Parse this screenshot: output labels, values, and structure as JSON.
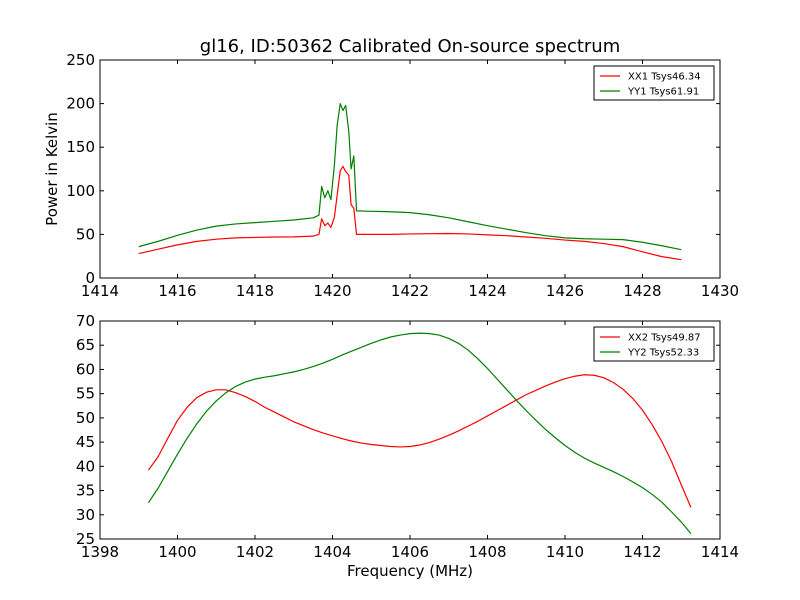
{
  "figure": {
    "title": "gl16, ID:50362 Calibrated On-source spectrum"
  },
  "chart_data": [
    {
      "type": "line",
      "title": "gl16, ID:50362 Calibrated On-source spectrum",
      "xlabel": "",
      "ylabel": "Power in Kelvin",
      "xlim": [
        1414,
        1430
      ],
      "ylim": [
        0,
        250
      ],
      "xticks": [
        1414,
        1416,
        1418,
        1420,
        1422,
        1424,
        1426,
        1428,
        1430
      ],
      "yticks": [
        0,
        50,
        100,
        150,
        200,
        250
      ],
      "grid": false,
      "legend": "top-right",
      "series": [
        {
          "name": "XX1 Tsys46.34",
          "color": "#ff0000",
          "points": [
            [
              1415.0,
              28
            ],
            [
              1415.5,
              33
            ],
            [
              1416.0,
              38
            ],
            [
              1416.5,
              42
            ],
            [
              1417.0,
              44.5
            ],
            [
              1417.5,
              46
            ],
            [
              1418.0,
              46.5
            ],
            [
              1418.5,
              47
            ],
            [
              1419.0,
              47.2
            ],
            [
              1419.5,
              48
            ],
            [
              1419.65,
              50
            ],
            [
              1419.72,
              68
            ],
            [
              1419.8,
              60
            ],
            [
              1419.88,
              63
            ],
            [
              1419.96,
              58
            ],
            [
              1420.05,
              70
            ],
            [
              1420.12,
              95
            ],
            [
              1420.2,
              123
            ],
            [
              1420.27,
              128
            ],
            [
              1420.34,
              122
            ],
            [
              1420.42,
              118
            ],
            [
              1420.48,
              84
            ],
            [
              1420.55,
              80
            ],
            [
              1420.62,
              50
            ],
            [
              1421.0,
              50
            ],
            [
              1421.5,
              50
            ],
            [
              1422.0,
              50.5
            ],
            [
              1422.5,
              50.8
            ],
            [
              1423.0,
              51
            ],
            [
              1423.5,
              50.5
            ],
            [
              1424.0,
              49.5
            ],
            [
              1424.5,
              48.5
            ],
            [
              1425.0,
              47
            ],
            [
              1425.5,
              45.5
            ],
            [
              1426.0,
              43.5
            ],
            [
              1426.5,
              42
            ],
            [
              1427.0,
              39.5
            ],
            [
              1427.5,
              36
            ],
            [
              1428.0,
              30
            ],
            [
              1428.5,
              24.5
            ],
            [
              1429.0,
              21
            ]
          ]
        },
        {
          "name": "YY1 Tsys61.91",
          "color": "#008000",
          "points": [
            [
              1415.0,
              36
            ],
            [
              1415.5,
              42
            ],
            [
              1416.0,
              49
            ],
            [
              1416.5,
              55
            ],
            [
              1417.0,
              59.5
            ],
            [
              1417.5,
              62
            ],
            [
              1418.0,
              63.5
            ],
            [
              1418.5,
              65
            ],
            [
              1419.0,
              66.5
            ],
            [
              1419.5,
              69
            ],
            [
              1419.65,
              72
            ],
            [
              1419.72,
              105
            ],
            [
              1419.8,
              92
            ],
            [
              1419.88,
              100
            ],
            [
              1419.96,
              90
            ],
            [
              1420.05,
              130
            ],
            [
              1420.12,
              175
            ],
            [
              1420.2,
              200
            ],
            [
              1420.27,
              192
            ],
            [
              1420.34,
              198
            ],
            [
              1420.42,
              168
            ],
            [
              1420.48,
              125
            ],
            [
              1420.55,
              140
            ],
            [
              1420.62,
              77
            ],
            [
              1421.0,
              76.5
            ],
            [
              1421.5,
              76
            ],
            [
              1422.0,
              75
            ],
            [
              1422.5,
              72.5
            ],
            [
              1423.0,
              69
            ],
            [
              1423.5,
              64.5
            ],
            [
              1424.0,
              60
            ],
            [
              1424.5,
              56
            ],
            [
              1425.0,
              52
            ],
            [
              1425.5,
              48.5
            ],
            [
              1426.0,
              46
            ],
            [
              1426.5,
              45
            ],
            [
              1427.0,
              44.5
            ],
            [
              1427.5,
              44
            ],
            [
              1428.0,
              41
            ],
            [
              1428.5,
              37
            ],
            [
              1429.0,
              32.5
            ]
          ]
        }
      ]
    },
    {
      "type": "line",
      "title": "",
      "xlabel": "Frequency (MHz)",
      "ylabel": "",
      "xlim": [
        1398,
        1414
      ],
      "ylim": [
        25,
        70
      ],
      "xticks": [
        1398,
        1400,
        1402,
        1404,
        1406,
        1408,
        1410,
        1412,
        1414
      ],
      "yticks": [
        25,
        30,
        35,
        40,
        45,
        50,
        55,
        60,
        65,
        70
      ],
      "grid": false,
      "legend": "top-right",
      "series": [
        {
          "name": "XX2 Tsys49.87",
          "color": "#ff0000",
          "points": [
            [
              1399.25,
              39.2
            ],
            [
              1399.5,
              42
            ],
            [
              1399.75,
              45.8
            ],
            [
              1400.0,
              49.5
            ],
            [
              1400.25,
              52.2
            ],
            [
              1400.5,
              54.2
            ],
            [
              1400.75,
              55.3
            ],
            [
              1401.0,
              55.8
            ],
            [
              1401.25,
              55.8
            ],
            [
              1401.5,
              55.2
            ],
            [
              1401.75,
              54.4
            ],
            [
              1402.0,
              53.4
            ],
            [
              1402.25,
              52.2
            ],
            [
              1402.5,
              51.2
            ],
            [
              1402.75,
              50.2
            ],
            [
              1403.0,
              49.2
            ],
            [
              1403.25,
              48.4
            ],
            [
              1403.5,
              47.6
            ],
            [
              1403.75,
              46.9
            ],
            [
              1404.0,
              46.3
            ],
            [
              1404.25,
              45.7
            ],
            [
              1404.5,
              45.2
            ],
            [
              1404.75,
              44.8
            ],
            [
              1405.0,
              44.5
            ],
            [
              1405.25,
              44.3
            ],
            [
              1405.5,
              44.1
            ],
            [
              1405.75,
              44.0
            ],
            [
              1406.0,
              44.1
            ],
            [
              1406.25,
              44.4
            ],
            [
              1406.5,
              44.9
            ],
            [
              1406.75,
              45.6
            ],
            [
              1407.0,
              46.4
            ],
            [
              1407.25,
              47.3
            ],
            [
              1407.5,
              48.3
            ],
            [
              1407.75,
              49.3
            ],
            [
              1408.0,
              50.4
            ],
            [
              1408.25,
              51.5
            ],
            [
              1408.5,
              52.6
            ],
            [
              1408.75,
              53.7
            ],
            [
              1409.0,
              54.8
            ],
            [
              1409.25,
              55.7
            ],
            [
              1409.5,
              56.6
            ],
            [
              1409.75,
              57.4
            ],
            [
              1410.0,
              58.1
            ],
            [
              1410.25,
              58.6
            ],
            [
              1410.5,
              58.9
            ],
            [
              1410.75,
              58.8
            ],
            [
              1411.0,
              58.3
            ],
            [
              1411.25,
              57.3
            ],
            [
              1411.5,
              55.9
            ],
            [
              1411.75,
              54.0
            ],
            [
              1412.0,
              51.6
            ],
            [
              1412.25,
              48.6
            ],
            [
              1412.5,
              45.1
            ],
            [
              1412.75,
              41.0
            ],
            [
              1413.0,
              36.2
            ],
            [
              1413.25,
              31.5
            ]
          ]
        },
        {
          "name": "YY2 Tsys52.33",
          "color": "#008000",
          "points": [
            [
              1399.25,
              32.5
            ],
            [
              1399.5,
              35.5
            ],
            [
              1399.75,
              39.0
            ],
            [
              1400.0,
              42.5
            ],
            [
              1400.25,
              45.8
            ],
            [
              1400.5,
              48.8
            ],
            [
              1400.75,
              51.4
            ],
            [
              1401.0,
              53.5
            ],
            [
              1401.25,
              55.2
            ],
            [
              1401.5,
              56.5
            ],
            [
              1401.75,
              57.4
            ],
            [
              1402.0,
              58.0
            ],
            [
              1402.25,
              58.4
            ],
            [
              1402.5,
              58.7
            ],
            [
              1402.75,
              59.1
            ],
            [
              1403.0,
              59.5
            ],
            [
              1403.25,
              60.0
            ],
            [
              1403.5,
              60.6
            ],
            [
              1403.75,
              61.3
            ],
            [
              1404.0,
              62.1
            ],
            [
              1404.25,
              63.0
            ],
            [
              1404.5,
              63.8
            ],
            [
              1404.75,
              64.6
            ],
            [
              1405.0,
              65.4
            ],
            [
              1405.25,
              66.1
            ],
            [
              1405.5,
              66.7
            ],
            [
              1405.75,
              67.1
            ],
            [
              1406.0,
              67.4
            ],
            [
              1406.25,
              67.5
            ],
            [
              1406.5,
              67.4
            ],
            [
              1406.75,
              67.1
            ],
            [
              1407.0,
              66.4
            ],
            [
              1407.25,
              65.4
            ],
            [
              1407.5,
              64.0
            ],
            [
              1407.75,
              62.2
            ],
            [
              1408.0,
              60.2
            ],
            [
              1408.25,
              58.0
            ],
            [
              1408.5,
              55.8
            ],
            [
              1408.75,
              53.6
            ],
            [
              1409.0,
              51.5
            ],
            [
              1409.25,
              49.5
            ],
            [
              1409.5,
              47.6
            ],
            [
              1409.75,
              45.9
            ],
            [
              1410.0,
              44.3
            ],
            [
              1410.25,
              42.9
            ],
            [
              1410.5,
              41.7
            ],
            [
              1410.75,
              40.7
            ],
            [
              1411.0,
              39.8
            ],
            [
              1411.25,
              38.9
            ],
            [
              1411.5,
              37.9
            ],
            [
              1411.75,
              36.8
            ],
            [
              1412.0,
              35.6
            ],
            [
              1412.25,
              34.2
            ],
            [
              1412.5,
              32.6
            ],
            [
              1412.75,
              30.6
            ],
            [
              1413.0,
              28.5
            ],
            [
              1413.25,
              26.1
            ]
          ]
        }
      ]
    }
  ]
}
